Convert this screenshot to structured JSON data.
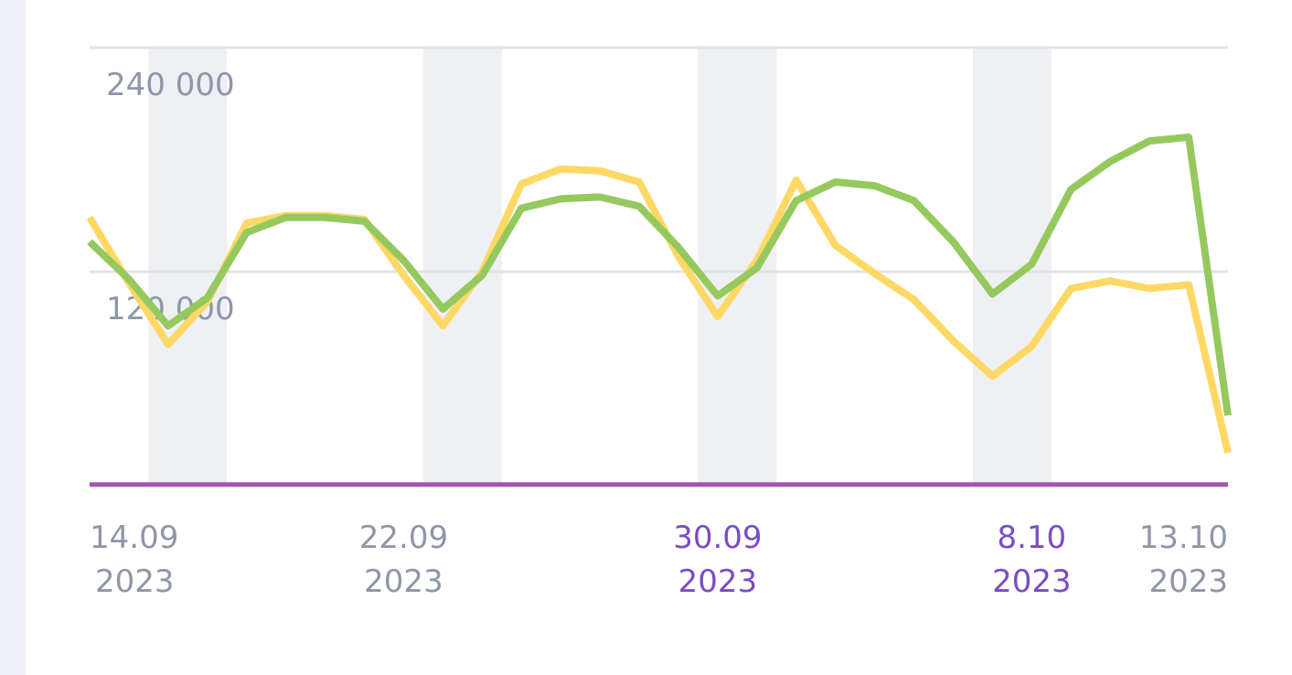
{
  "chart_data": {
    "type": "line",
    "categories": [
      [
        "14.09",
        "2023"
      ],
      null,
      null,
      null,
      null,
      null,
      null,
      null,
      [
        "22.09",
        "2023"
      ],
      null,
      null,
      null,
      null,
      null,
      null,
      null,
      [
        "30.09",
        "2023"
      ],
      null,
      null,
      null,
      null,
      null,
      null,
      null,
      [
        "8.10",
        "2023"
      ],
      null,
      null,
      null,
      null,
      [
        "13.10",
        "2023"
      ]
    ],
    "highlight": [
      16,
      24
    ],
    "highlight_color": "#7b4cc4",
    "label_color": "#8e96a8",
    "series": [
      {
        "color": "#95c95e",
        "values": [
          136000,
          116000,
          91000,
          106000,
          141000,
          149000,
          149000,
          147000,
          126000,
          100000,
          118000,
          154000,
          159000,
          160000,
          155000,
          133000,
          107000,
          122000,
          158000,
          168000,
          166000,
          158000,
          136000,
          108000,
          124000,
          164000,
          179000,
          190000,
          192000,
          43000
        ]
      },
      {
        "color": "#fdd865",
        "values": [
          149000,
          114000,
          81000,
          104000,
          146000,
          150000,
          150000,
          148000,
          118000,
          91000,
          120000,
          167000,
          175000,
          174000,
          168000,
          128000,
          96000,
          126000,
          169000,
          134000,
          119000,
          105000,
          83000,
          64000,
          80000,
          111000,
          115000,
          111000,
          113000,
          23000
        ]
      },
      {
        "color": "#a455b0",
        "values": [
          6000,
          6000,
          6000,
          6000,
          6000,
          6000,
          6000,
          6000,
          6000,
          6000,
          6000,
          6000,
          6000,
          6000,
          6000,
          6000,
          6000,
          6000,
          6000,
          6000,
          6000,
          6000,
          6000,
          6000,
          6000,
          6000,
          6000,
          6000,
          6000,
          6000
        ]
      }
    ],
    "ylim": [
      0,
      240000
    ],
    "yticks": [
      {
        "value": 120000,
        "label": "120 000"
      },
      {
        "value": 240000,
        "label": "240 000"
      }
    ],
    "grid": true
  }
}
